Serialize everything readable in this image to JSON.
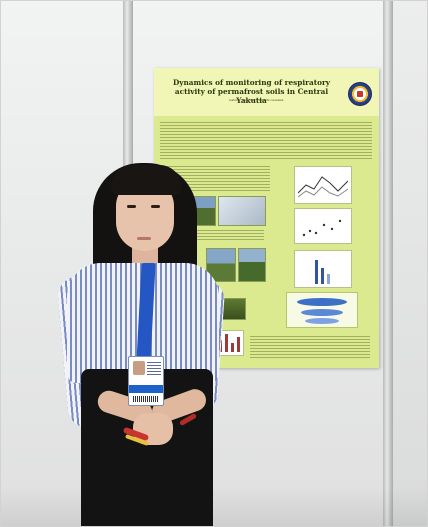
{
  "poster": {
    "title": "Dynamics of monitoring of respiratory activity of permafrost soils in Central Yakutia",
    "authors": "Authors: · Supervisor: · Scientific consultant:"
  }
}
